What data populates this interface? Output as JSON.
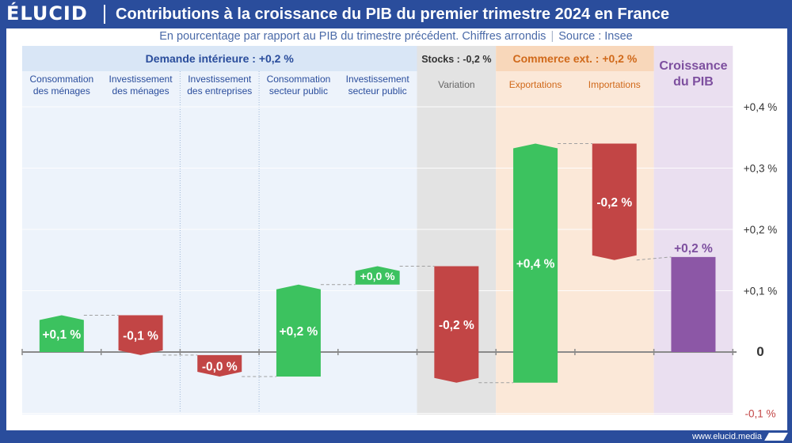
{
  "header": {
    "logo": "ÉLUCID",
    "title": "Contributions à la croissance du PIB du premier trimestre 2024 en France",
    "subtitle": "En pourcentage par rapport au PIB du trimestre précédent. Chiffres arrondis",
    "source_sep": "|",
    "source": "Source : Insee"
  },
  "footer": {
    "url": "www.elucid.media"
  },
  "colors": {
    "frame": "#2a4d9c",
    "positive": "#3cc25f",
    "negative": "#c24545",
    "total": "#8c57a6",
    "demand_bg": "#edf3fb",
    "stocks_bg": "#e3e3e3",
    "commerce_bg": "#fbe8d8",
    "gdp_bg": "#eadff0"
  },
  "chart_data": {
    "type": "waterfall",
    "title": "Contributions à la croissance du PIB du premier trimestre 2024 en France",
    "ylabel": "",
    "ylim": [
      -0.1,
      0.4
    ],
    "yticks": [
      {
        "value": 0.4,
        "label": "+0,4 %"
      },
      {
        "value": 0.3,
        "label": "+0,3 %"
      },
      {
        "value": 0.2,
        "label": "+0,2 %"
      },
      {
        "value": 0.1,
        "label": "+0,1 %"
      },
      {
        "value": 0,
        "label": "0"
      },
      {
        "value": -0.1,
        "label": "-0,1 %"
      }
    ],
    "groups": [
      {
        "key": "demand",
        "label": "Demande intérieure : +0,2 %",
        "from": 0,
        "to": 4
      },
      {
        "key": "stocks",
        "label": "Stocks : -0,2 %",
        "from": 5,
        "to": 5
      },
      {
        "key": "commerce",
        "label": "Commerce ext. : +0,2 %",
        "from": 6,
        "to": 7
      },
      {
        "key": "gdp",
        "label": "Croissance du PIB",
        "from": 8,
        "to": 8
      }
    ],
    "categories": [
      "Consommation des ménages",
      "Investissement des ménages",
      "Investissement des entreprises",
      "Consommation secteur public",
      "Investissement secteur public",
      "Variation",
      "Exportations",
      "Importations",
      "Croissance du PIB"
    ],
    "category_lines": [
      [
        "Consommation",
        "des ménages"
      ],
      [
        "Investissement",
        "des ménages"
      ],
      [
        "Investissement",
        "des entreprises"
      ],
      [
        "Consommation",
        "secteur public"
      ],
      [
        "Investissement",
        "secteur public"
      ],
      [
        "Variation"
      ],
      [
        "Exportations"
      ],
      [
        "Importations"
      ],
      [
        "Croissance",
        "du PIB"
      ]
    ],
    "values": [
      0.06,
      -0.065,
      -0.035,
      0.15,
      0.03,
      -0.19,
      0.39,
      -0.19,
      0.155
    ],
    "bar_types": [
      "delta",
      "delta",
      "delta",
      "delta",
      "delta",
      "delta",
      "delta",
      "delta",
      "total"
    ],
    "data_labels": [
      "+0,1 %",
      "-0,1 %",
      "-0,0 %",
      "+0,2 %",
      "+0,0 %",
      "-0,2 %",
      "+0,4 %",
      "-0,2 %",
      "+0,2 %"
    ]
  }
}
